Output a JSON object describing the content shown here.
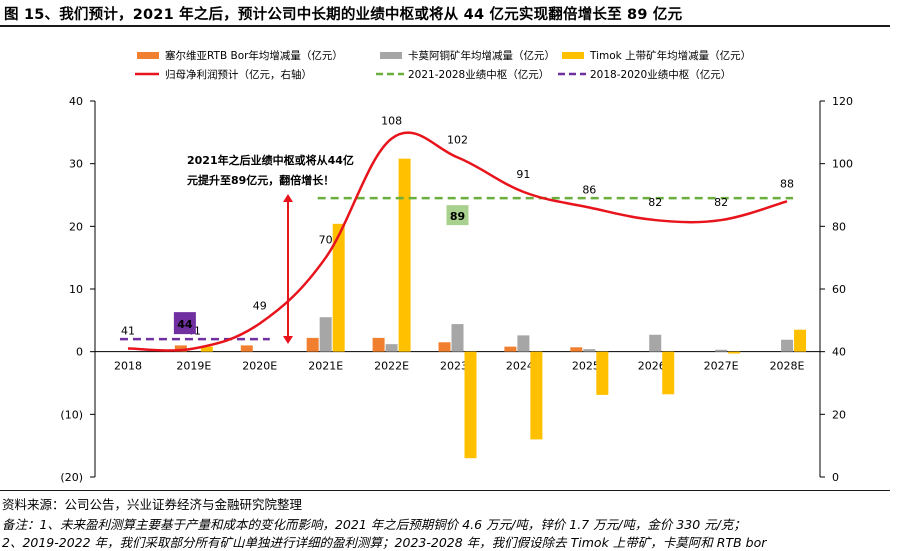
{
  "header": {
    "title": "图 15、我们预计，2021 年之后，预计公司中长期的业绩中枢或将从 44 亿元实现翻倍增长至 89 亿元"
  },
  "footer": {
    "source": "资料来源：公司公告，兴业证券经济与金融研究院整理",
    "note_line1": "备注：1、未来盈利测算主要基于产量和成本的变化而影响，2021 年之后预期铜价 4.6 万元/吨，锌价 1.7 万元/吨，金价 330 元/克；",
    "note_line2": "2、2019-2022 年，我们采取部分所有矿山单独进行详细的盈利测算；2023-2028 年，我们假设除去 Timok 上带矿，卡莫阿和 RTB bor"
  },
  "colors": {
    "serbia": "#F08030",
    "kamoa": "#A6A6A6",
    "timok": "#FFC000",
    "profit": "#E8141C",
    "center_2021": "#6AAF3D",
    "center_2018": "#7030A0",
    "annotation": "#E8141C"
  },
  "chart_data": {
    "type": "bar",
    "categories": [
      "2018",
      "2019E",
      "2020E",
      "2021E",
      "2022E",
      "2023E",
      "2024E",
      "2025E",
      "2026E",
      "2027E",
      "2028E"
    ],
    "series": [
      {
        "name": "塞尔维亚RTB Bor年均增减量（亿元）",
        "type": "bar",
        "axis": "left",
        "values": [
          0,
          1.0,
          1.0,
          2.2,
          2.2,
          1.5,
          0.8,
          0.7,
          0,
          0,
          0
        ]
      },
      {
        "name": "卡莫阿铜矿年均增减量（亿元）",
        "type": "bar",
        "axis": "left",
        "values": [
          0,
          0,
          0,
          5.5,
          1.2,
          4.4,
          2.6,
          0.4,
          2.7,
          0.3,
          1.9
        ]
      },
      {
        "name": "Timok 上带矿年均增减量（亿元）",
        "type": "bar",
        "axis": "left",
        "values": [
          0,
          0.8,
          0,
          20.4,
          30.8,
          -17.0,
          -14.0,
          -6.9,
          -6.8,
          -0.3,
          3.5
        ]
      },
      {
        "name": "归母净利润预计（亿元，右轴）",
        "type": "line",
        "axis": "right",
        "values": [
          41,
          41,
          49,
          70,
          108,
          102,
          91,
          86,
          82,
          82,
          88
        ]
      },
      {
        "name": "2021-2028业绩中枢（亿元）",
        "type": "dashed",
        "axis": "right",
        "value": 89,
        "range": [
          "2021E",
          "2028E"
        ]
      },
      {
        "name": "2018-2020业绩中枢（亿元）",
        "type": "dashed",
        "axis": "right",
        "value": 44,
        "range": [
          "2018",
          "2020E"
        ]
      }
    ],
    "line_labels": [
      "41",
      "41",
      "49",
      "70",
      "108",
      "102",
      "91",
      "86",
      "82",
      "82",
      "88"
    ],
    "center_labels": {
      "center_2021": "89",
      "center_2018": "44"
    },
    "annotation": {
      "line1": "2021年之后业绩中枢或将从44亿",
      "line2": "元提升至89亿元，翻倍增长！"
    },
    "left_axis": {
      "ylim": [
        -20,
        40
      ],
      "ticks": [
        "40",
        "30",
        "20",
        "10",
        "0",
        "(10)",
        "(20)"
      ]
    },
    "right_axis": {
      "ylim": [
        0,
        120
      ],
      "ticks": [
        "120",
        "100",
        "80",
        "60",
        "40",
        "20",
        "0"
      ]
    },
    "legend_position": "top",
    "grid": false
  }
}
